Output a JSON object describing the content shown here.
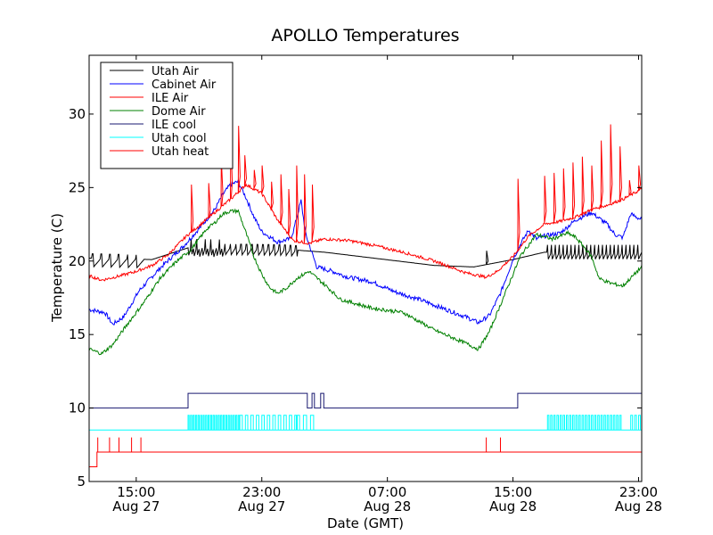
{
  "chart_data": {
    "type": "line",
    "title": "APOLLO Temperatures",
    "xlabel": "Date (GMT)",
    "ylabel": "Temperature (C)",
    "x_unit": "hours since Aug 27 12:00 GMT",
    "xlim": [
      0,
      35.2
    ],
    "ylim": [
      5,
      34
    ],
    "legend_position": "top-left",
    "y_ticks": [
      {
        "value": 5,
        "label": "5"
      },
      {
        "value": 10,
        "label": "10"
      },
      {
        "value": 15,
        "label": "15"
      },
      {
        "value": 20,
        "label": "20"
      },
      {
        "value": 25,
        "label": "25"
      },
      {
        "value": 30,
        "label": "30"
      }
    ],
    "x_ticks": [
      {
        "value": 3,
        "time": "15:00",
        "date": "Aug 27"
      },
      {
        "value": 11,
        "time": "23:00",
        "date": "Aug 27"
      },
      {
        "value": 19,
        "time": "07:00",
        "date": "Aug 28"
      },
      {
        "value": 27,
        "time": "15:00",
        "date": "Aug 28"
      },
      {
        "value": 35,
        "time": "23:00",
        "date": "Aug 28"
      }
    ],
    "series": [
      {
        "name": "Utah Air",
        "color": "#000000",
        "kind": "line",
        "points": [
          [
            0,
            20.2
          ],
          [
            4,
            20.1
          ],
          [
            6.3,
            20.9
          ],
          [
            12.5,
            20.8
          ],
          [
            15,
            20.6
          ],
          [
            22,
            19.7
          ],
          [
            24.5,
            19.6
          ],
          [
            27,
            20.1
          ],
          [
            29,
            20.6
          ],
          [
            35.2,
            20.6
          ]
        ],
        "oscillations": [
          {
            "from": 0.2,
            "to": 3.5,
            "period": 0.55,
            "low": -0.6,
            "high": 0.3
          },
          {
            "from": 6.3,
            "to": 8.6,
            "period": 0.18,
            "low": -0.6,
            "high": 0.6
          },
          {
            "from": 8.6,
            "to": 13.3,
            "period": 0.35,
            "low": -0.5,
            "high": 0.3
          },
          {
            "from": 29.2,
            "to": 35.2,
            "period": 0.25,
            "low": -0.5,
            "high": 0.5
          }
        ],
        "spikes": [
          [
            25.3,
            20.7
          ]
        ]
      },
      {
        "name": "Cabinet Air",
        "color": "#0000ff",
        "kind": "line",
        "points": [
          [
            0,
            16.7
          ],
          [
            1,
            16.5
          ],
          [
            1.5,
            15.7
          ],
          [
            2.2,
            16.2
          ],
          [
            3.2,
            18
          ],
          [
            4.5,
            19.5
          ],
          [
            6,
            21
          ],
          [
            7,
            22.2
          ],
          [
            8,
            23.5
          ],
          [
            8.5,
            24.5
          ],
          [
            9,
            25.2
          ],
          [
            9.5,
            25.4
          ],
          [
            10,
            24.3
          ],
          [
            10.5,
            23
          ],
          [
            11,
            22
          ],
          [
            12,
            21.3
          ],
          [
            12.8,
            21.5
          ],
          [
            13,
            22
          ],
          [
            13.5,
            24.1
          ],
          [
            13.8,
            21.8
          ],
          [
            14.5,
            19.6
          ],
          [
            15.5,
            19.3
          ],
          [
            16.5,
            18.9
          ],
          [
            18,
            18.6
          ],
          [
            19.5,
            17.9
          ],
          [
            21,
            17.4
          ],
          [
            22.5,
            16.8
          ],
          [
            24,
            16.2
          ],
          [
            24.8,
            15.8
          ],
          [
            25.5,
            16.3
          ],
          [
            26.2,
            17.8
          ],
          [
            27,
            20.1
          ],
          [
            27.5,
            21.2
          ],
          [
            28,
            22.1
          ],
          [
            28.5,
            21.5
          ],
          [
            29,
            21.7
          ],
          [
            30,
            21.9
          ],
          [
            31,
            22.8
          ],
          [
            32,
            23.3
          ],
          [
            33,
            22.5
          ],
          [
            33.5,
            21.8
          ],
          [
            34,
            21.6
          ],
          [
            34.5,
            23.2
          ],
          [
            35.2,
            22.8
          ]
        ],
        "noise": 0.3
      },
      {
        "name": "ILE Air",
        "color": "#ff0000",
        "kind": "line",
        "points": [
          [
            0,
            19
          ],
          [
            0.8,
            18.7
          ],
          [
            2,
            19
          ],
          [
            3,
            19.3
          ],
          [
            4,
            19.7
          ],
          [
            5,
            20.4
          ],
          [
            6.2,
            21.7
          ],
          [
            7,
            22.4
          ],
          [
            8,
            23.3
          ],
          [
            9,
            24.2
          ],
          [
            10,
            25.2
          ],
          [
            11,
            24.6
          ],
          [
            12,
            22.8
          ],
          [
            13,
            21.4
          ],
          [
            14,
            21.2
          ],
          [
            15,
            21.5
          ],
          [
            16.5,
            21.4
          ],
          [
            18,
            21.1
          ],
          [
            20,
            20.6
          ],
          [
            22,
            20
          ],
          [
            24,
            19.2
          ],
          [
            25.3,
            18.9
          ],
          [
            26,
            19.3
          ],
          [
            27,
            20.3
          ],
          [
            28,
            21.7
          ],
          [
            29,
            22.5
          ],
          [
            30,
            22.7
          ],
          [
            31,
            23
          ],
          [
            32,
            23.5
          ],
          [
            33,
            23.8
          ],
          [
            34,
            24.2
          ],
          [
            35.2,
            24.9
          ]
        ],
        "noise": 0.2,
        "spikes": [
          [
            6.5,
            25.2
          ],
          [
            7.6,
            25.3
          ],
          [
            8.4,
            27
          ],
          [
            9.0,
            28.5
          ],
          [
            9.5,
            29.2
          ],
          [
            9.9,
            27.2
          ],
          [
            10.5,
            26.2
          ],
          [
            11.0,
            26.5
          ],
          [
            11.6,
            25.4
          ],
          [
            12.2,
            25.9
          ],
          [
            12.7,
            24.9
          ],
          [
            13.2,
            26.5
          ],
          [
            13.7,
            25.9
          ],
          [
            14.2,
            25.2
          ],
          [
            27.3,
            25.6
          ],
          [
            29.0,
            25.8
          ],
          [
            29.6,
            26.0
          ],
          [
            30.2,
            26.3
          ],
          [
            30.8,
            26.7
          ],
          [
            31.4,
            27.1
          ],
          [
            32.0,
            26.5
          ],
          [
            32.6,
            28.2
          ],
          [
            33.2,
            29.3
          ],
          [
            33.8,
            27.8
          ],
          [
            34.4,
            25.5
          ],
          [
            35.0,
            26.5
          ]
        ]
      },
      {
        "name": "Dome Air",
        "color": "#008000",
        "kind": "line",
        "points": [
          [
            0,
            14
          ],
          [
            0.8,
            13.7
          ],
          [
            1.5,
            14.3
          ],
          [
            2.5,
            15.8
          ],
          [
            3.5,
            17.2
          ],
          [
            4.5,
            18.8
          ],
          [
            5.5,
            19.9
          ],
          [
            6.5,
            20.8
          ],
          [
            7.5,
            22.2
          ],
          [
            8,
            22.6
          ],
          [
            8.5,
            23.2
          ],
          [
            9,
            23.4
          ],
          [
            9.5,
            23.4
          ],
          [
            10,
            21.9
          ],
          [
            10.5,
            20.3
          ],
          [
            11,
            19.1
          ],
          [
            11.5,
            18.2
          ],
          [
            12,
            17.8
          ],
          [
            12.5,
            18.1
          ],
          [
            13.2,
            18.8
          ],
          [
            14,
            19.3
          ],
          [
            15,
            18.4
          ],
          [
            16,
            17.4
          ],
          [
            18,
            16.8
          ],
          [
            20,
            16.5
          ],
          [
            22,
            15.3
          ],
          [
            24,
            14.4
          ],
          [
            24.8,
            14
          ],
          [
            25.5,
            15.2
          ],
          [
            26.5,
            17.8
          ],
          [
            27.5,
            20.4
          ],
          [
            28.5,
            21.8
          ],
          [
            29.5,
            21.5
          ],
          [
            30.5,
            21.9
          ],
          [
            31,
            21.6
          ],
          [
            31.5,
            21
          ],
          [
            32,
            20.3
          ],
          [
            32.5,
            18.8
          ],
          [
            33.2,
            18.5
          ],
          [
            34,
            18.3
          ],
          [
            35.2,
            19.6
          ]
        ],
        "noise": 0.25
      },
      {
        "name": "ILE cool",
        "color": "#191970",
        "kind": "step",
        "points": [
          [
            0,
            10
          ],
          [
            6.3,
            10
          ],
          [
            6.3,
            11
          ],
          [
            13.9,
            11
          ],
          [
            13.9,
            10
          ],
          [
            14.2,
            10
          ],
          [
            14.2,
            11
          ],
          [
            14.35,
            11
          ],
          [
            14.35,
            10
          ],
          [
            14.75,
            10
          ],
          [
            14.75,
            11
          ],
          [
            14.95,
            11
          ],
          [
            14.95,
            10
          ],
          [
            27.3,
            10
          ],
          [
            27.3,
            11
          ],
          [
            35.2,
            11
          ]
        ]
      },
      {
        "name": "Utah cool",
        "color": "#00ffff",
        "kind": "pulses",
        "base": 8.5,
        "high": 9.5,
        "pulses": [
          [
            6.3,
            9.6,
            0.16
          ],
          [
            9.6,
            13.2,
            0.35
          ],
          [
            13.2,
            14.2,
            0.45
          ],
          [
            29.2,
            34.0,
            0.2
          ],
          [
            34.5,
            35.2,
            0.25
          ]
        ]
      },
      {
        "name": "Utah heat",
        "color": "#ff0000",
        "kind": "step",
        "points": [
          [
            0,
            6
          ],
          [
            0.5,
            6
          ],
          [
            0.5,
            7
          ],
          [
            35.2,
            7
          ]
        ],
        "spikes": [
          [
            0.55,
            8
          ],
          [
            1.3,
            8
          ],
          [
            1.9,
            8
          ],
          [
            2.7,
            8
          ],
          [
            3.3,
            8
          ],
          [
            25.3,
            8
          ],
          [
            26.2,
            8
          ]
        ]
      }
    ]
  }
}
